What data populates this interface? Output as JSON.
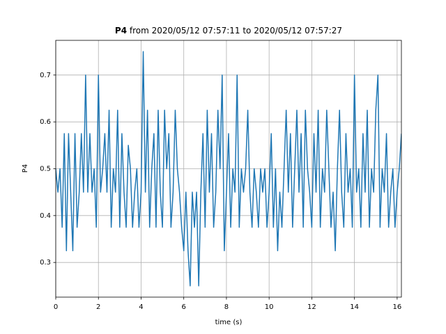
{
  "chart_data": {
    "type": "line",
    "title_bold": "P4",
    "title": "from 2020/05/12 07:57:11 to 2020/05/12 07:57:27",
    "xlabel": "time (s)",
    "ylabel": "P4",
    "x": [
      0,
      0.1,
      0.2,
      0.3,
      0.4,
      0.5,
      0.6,
      0.7,
      0.8,
      0.9,
      1,
      1.1,
      1.2,
      1.3,
      1.4,
      1.5,
      1.6,
      1.7,
      1.8,
      1.9,
      2,
      2.1,
      2.2,
      2.3,
      2.4,
      2.5,
      2.6,
      2.7,
      2.8,
      2.9,
      3,
      3.1,
      3.2,
      3.3,
      3.4,
      3.5,
      3.6,
      3.7,
      3.8,
      3.9,
      4,
      4.1,
      4.2,
      4.3,
      4.4,
      4.5,
      4.6,
      4.7,
      4.8,
      4.9,
      5,
      5.1,
      5.2,
      5.3,
      5.4,
      5.5,
      5.6,
      5.7,
      5.8,
      5.9,
      6,
      6.1,
      6.2,
      6.3,
      6.4,
      6.5,
      6.6,
      6.7,
      6.8,
      6.9,
      7,
      7.1,
      7.2,
      7.3,
      7.4,
      7.5,
      7.6,
      7.7,
      7.8,
      7.9,
      8,
      8.1,
      8.2,
      8.3,
      8.4,
      8.5,
      8.6,
      8.7,
      8.8,
      8.9,
      9,
      9.1,
      9.2,
      9.3,
      9.4,
      9.5,
      9.6,
      9.7,
      9.8,
      9.9,
      10,
      10.1,
      10.2,
      10.3,
      10.4,
      10.5,
      10.6,
      10.7,
      10.8,
      10.9,
      11,
      11.1,
      11.2,
      11.3,
      11.4,
      11.5,
      11.6,
      11.7,
      11.8,
      11.9,
      12,
      12.1,
      12.2,
      12.3,
      12.4,
      12.5,
      12.6,
      12.7,
      12.8,
      12.9,
      13,
      13.1,
      13.2,
      13.3,
      13.4,
      13.5,
      13.6,
      13.7,
      13.8,
      13.9,
      14,
      14.1,
      14.2,
      14.3,
      14.4,
      14.5,
      14.6,
      14.7,
      14.8,
      14.9,
      15,
      15.1,
      15.2,
      15.3,
      15.4,
      15.5,
      15.6,
      15.7,
      15.8,
      15.9,
      16,
      16.1,
      16.2
    ],
    "series": [
      {
        "color": "#1f77b4",
        "values": [
          0.5,
          0.45,
          0.5,
          0.375,
          0.575,
          0.325,
          0.575,
          0.45,
          0.325,
          0.575,
          0.375,
          0.45,
          0.575,
          0.45,
          0.7,
          0.45,
          0.575,
          0.45,
          0.5,
          0.375,
          0.7,
          0.45,
          0.5,
          0.575,
          0.45,
          0.625,
          0.375,
          0.5,
          0.45,
          0.625,
          0.375,
          0.575,
          0.45,
          0.375,
          0.55,
          0.5,
          0.375,
          0.45,
          0.5,
          0.375,
          0.45,
          0.75,
          0.45,
          0.625,
          0.375,
          0.5,
          0.575,
          0.375,
          0.625,
          0.45,
          0.375,
          0.625,
          0.5,
          0.575,
          0.375,
          0.45,
          0.625,
          0.5,
          0.45,
          0.375,
          0.325,
          0.45,
          0.325,
          0.25,
          0.45,
          0.375,
          0.45,
          0.25,
          0.45,
          0.575,
          0.375,
          0.625,
          0.45,
          0.575,
          0.375,
          0.45,
          0.625,
          0.5,
          0.7,
          0.325,
          0.45,
          0.575,
          0.375,
          0.5,
          0.45,
          0.7,
          0.375,
          0.5,
          0.45,
          0.5,
          0.625,
          0.45,
          0.375,
          0.5,
          0.45,
          0.375,
          0.5,
          0.45,
          0.5,
          0.375,
          0.45,
          0.575,
          0.375,
          0.5,
          0.325,
          0.45,
          0.375,
          0.5,
          0.625,
          0.45,
          0.575,
          0.375,
          0.5,
          0.625,
          0.45,
          0.575,
          0.375,
          0.625,
          0.5,
          0.45,
          0.375,
          0.575,
          0.45,
          0.625,
          0.375,
          0.5,
          0.45,
          0.625,
          0.5,
          0.375,
          0.45,
          0.325,
          0.5,
          0.625,
          0.45,
          0.375,
          0.575,
          0.45,
          0.5,
          0.375,
          0.7,
          0.45,
          0.5,
          0.375,
          0.575,
          0.45,
          0.625,
          0.375,
          0.5,
          0.45,
          0.625,
          0.7,
          0.375,
          0.5,
          0.45,
          0.575,
          0.375,
          0.45,
          0.5,
          0.375,
          0.45,
          0.5,
          0.575
        ]
      }
    ],
    "xlim": [
      0,
      16.2
    ],
    "ylim": [
      0.226,
      0.774
    ],
    "xticks": [
      0,
      2,
      4,
      6,
      8,
      10,
      12,
      14,
      16
    ],
    "yticks": [
      0.3,
      0.4,
      0.5,
      0.6,
      0.7
    ],
    "grid": true
  }
}
